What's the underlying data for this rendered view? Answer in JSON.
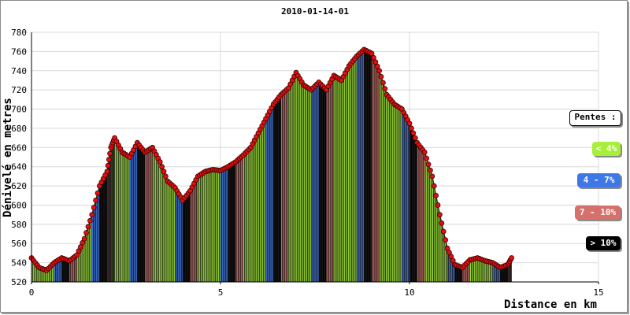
{
  "chart_data": {
    "type": "area",
    "title": "2010-01-14-01",
    "xlabel": "Distance en km",
    "ylabel": "Dénivelé en metres",
    "xlim": [
      0,
      15
    ],
    "ylim": [
      520,
      780
    ],
    "xticks": [
      0,
      5,
      10,
      15
    ],
    "yticks": [
      520,
      540,
      560,
      580,
      600,
      620,
      640,
      660,
      680,
      700,
      720,
      740,
      760,
      780
    ],
    "grid": true,
    "legend_position": "right",
    "colors": {
      "green": "#a6ef3a",
      "blue": "#3e78e8",
      "red": "#d6706a",
      "black": "#000000",
      "marker": "#e01010"
    },
    "x": [
      0,
      0.2,
      0.4,
      0.6,
      0.8,
      1.0,
      1.2,
      1.4,
      1.6,
      1.8,
      2.0,
      2.1,
      2.2,
      2.4,
      2.6,
      2.8,
      3.0,
      3.2,
      3.4,
      3.6,
      3.8,
      4.0,
      4.2,
      4.4,
      4.6,
      4.8,
      5.0,
      5.2,
      5.4,
      5.6,
      5.8,
      6.0,
      6.2,
      6.4,
      6.6,
      6.8,
      7.0,
      7.2,
      7.4,
      7.6,
      7.8,
      8.0,
      8.2,
      8.4,
      8.6,
      8.8,
      9.0,
      9.2,
      9.4,
      9.6,
      9.8,
      10.0,
      10.2,
      10.4,
      10.6,
      10.8,
      11.0,
      11.2,
      11.4,
      11.6,
      11.8,
      12.0,
      12.2,
      12.4,
      12.6,
      12.7
    ],
    "y": [
      545,
      535,
      532,
      540,
      545,
      542,
      548,
      565,
      590,
      620,
      635,
      660,
      670,
      655,
      650,
      665,
      655,
      660,
      645,
      625,
      618,
      605,
      615,
      630,
      635,
      637,
      636,
      640,
      645,
      652,
      660,
      675,
      690,
      705,
      715,
      722,
      738,
      725,
      720,
      728,
      720,
      735,
      730,
      745,
      755,
      762,
      758,
      740,
      715,
      705,
      700,
      685,
      665,
      655,
      630,
      590,
      555,
      538,
      535,
      543,
      545,
      542,
      540,
      535,
      538,
      545
    ],
    "slope_classes": [
      0,
      0,
      0,
      1,
      3,
      2,
      0,
      0,
      1,
      3,
      2,
      0,
      0,
      0,
      1,
      3,
      2,
      0,
      0,
      0,
      1,
      3,
      2,
      0,
      0,
      0,
      1,
      3,
      2,
      0,
      0,
      0,
      1,
      3,
      2,
      0,
      0,
      0,
      1,
      3,
      2,
      0,
      0,
      0,
      1,
      3,
      2,
      0,
      0,
      0,
      1,
      3,
      2,
      0,
      0,
      0,
      1,
      3,
      2,
      0,
      0,
      0,
      1,
      3,
      2,
      0
    ]
  },
  "legend": {
    "title": "Pentes :",
    "items": [
      {
        "label": "< 4%",
        "color": "#a6ef3a"
      },
      {
        "label": "4 - 7%",
        "color": "#3e78e8"
      },
      {
        "label": "7 - 10%",
        "color": "#d6706a"
      },
      {
        "label": "> 10%",
        "color": "#000000"
      }
    ]
  }
}
